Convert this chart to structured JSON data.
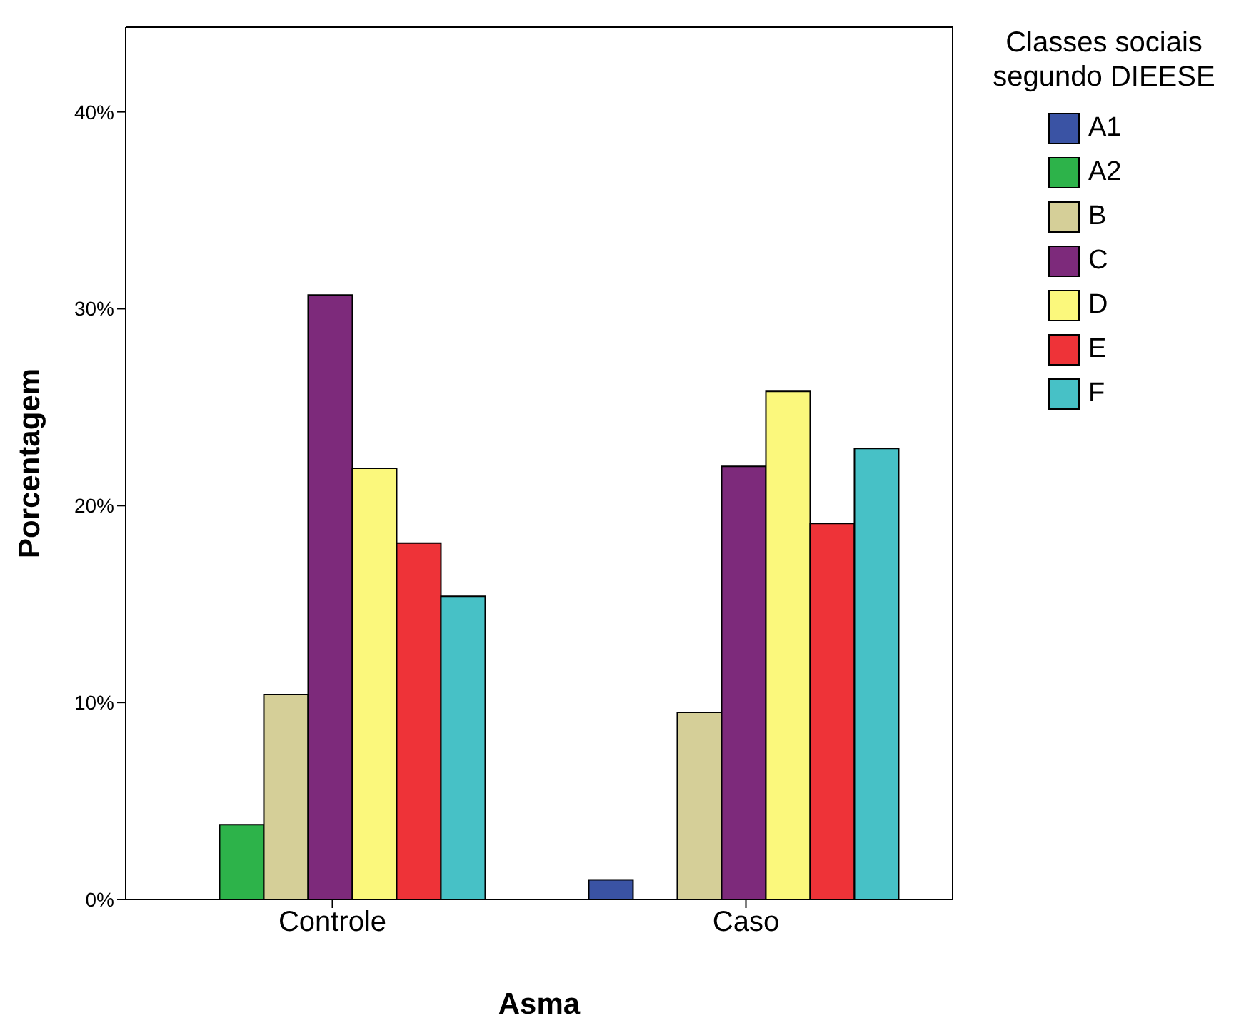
{
  "chart_data": {
    "type": "bar",
    "xlabel": "Asma",
    "ylabel": "Porcentagem",
    "legend_title": "Classes sociais segundo DIEESE",
    "categories": [
      "Controle",
      "Caso"
    ],
    "series": [
      {
        "name": "A1",
        "color": "#3a53a4",
        "values": [
          0,
          1.0
        ]
      },
      {
        "name": "A2",
        "color": "#2db34a",
        "values": [
          3.8,
          0
        ]
      },
      {
        "name": "B",
        "color": "#d5cf98",
        "values": [
          10.4,
          9.5
        ]
      },
      {
        "name": "C",
        "color": "#7d2a7b",
        "values": [
          30.7,
          22.0
        ]
      },
      {
        "name": "D",
        "color": "#fbf87c",
        "values": [
          21.9,
          25.8
        ]
      },
      {
        "name": "E",
        "color": "#ee3338",
        "values": [
          18.1,
          19.1
        ]
      },
      {
        "name": "F",
        "color": "#47c1c6",
        "values": [
          15.4,
          22.9
        ]
      }
    ],
    "ylim": [
      0,
      44.3
    ],
    "yticks": [
      {
        "value": 0,
        "label": "0%"
      },
      {
        "value": 10,
        "label": "10%"
      },
      {
        "value": 20,
        "label": "20%"
      },
      {
        "value": 30,
        "label": "30%"
      },
      {
        "value": 40,
        "label": "40%"
      }
    ],
    "grid": false,
    "legend": "top right"
  }
}
